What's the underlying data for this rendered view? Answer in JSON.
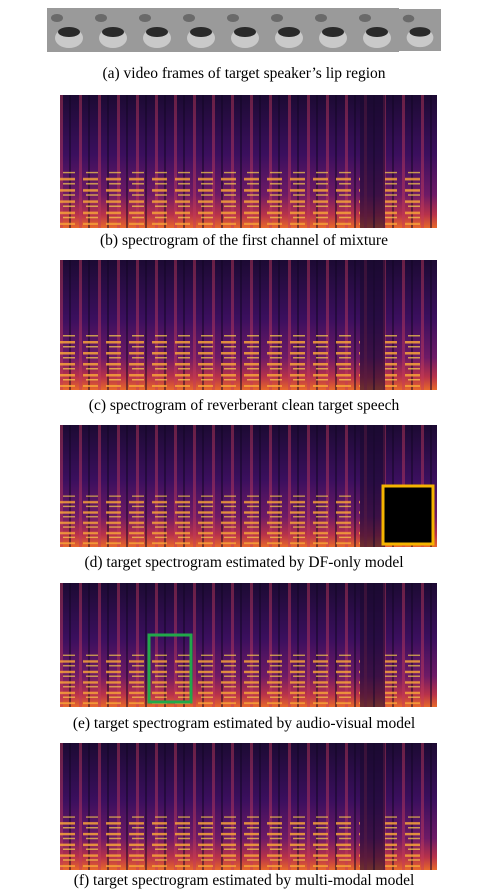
{
  "figure": {
    "captions": [
      "(a) video frames of target speaker’s lip region",
      "(b) spectrogram of the first channel of mixture",
      "(c) spectrogram of reverberant clean target speech",
      "(d) target spectrogram estimated by DF-only model",
      "(e) target spectrogram estimated by audio-visual model",
      "(f) target spectrogram estimated by multi-modal model"
    ]
  }
}
